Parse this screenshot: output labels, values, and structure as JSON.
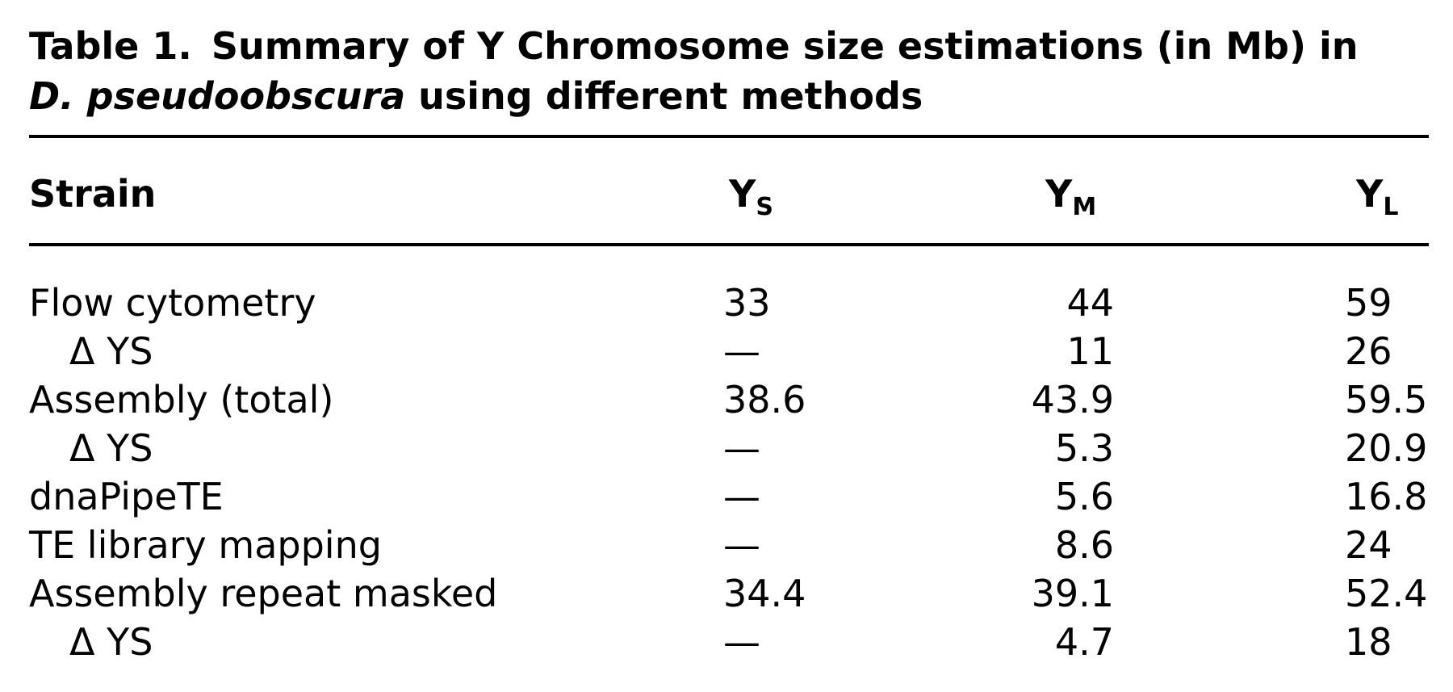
{
  "caption": {
    "label": "Table 1.",
    "title_start": "Summary of Y Chromosome size estimations (in Mb) in",
    "species": "D. pseudoobscura",
    "title_end": " using different methods"
  },
  "table": {
    "headers": {
      "strain": "Strain",
      "ys_main": "Y",
      "ys_sub": "S",
      "ym_main": "Y",
      "ym_sub": "M",
      "yl_main": "Y",
      "yl_sub": "L"
    },
    "rows": [
      {
        "strain": "Flow cytometry",
        "ys": "33",
        "ym": "44",
        "yl": "59",
        "indent": false
      },
      {
        "strain": "Δ YS",
        "ys": "—",
        "ym": "11",
        "yl": "26",
        "indent": true
      },
      {
        "strain": "Assembly (total)",
        "ys": "38.6",
        "ym": "43.9",
        "yl": "59.5",
        "indent": false
      },
      {
        "strain": "Δ YS",
        "ys": "—",
        "ym": "5.3",
        "yl": "20.9",
        "indent": true
      },
      {
        "strain": "dnaPipeTE",
        "ys": "—",
        "ym": "5.6",
        "yl": "16.8",
        "indent": false
      },
      {
        "strain": "TE library mapping",
        "ys": "—",
        "ym": "8.6",
        "yl": "24",
        "indent": false
      },
      {
        "strain": "Assembly repeat masked",
        "ys": "34.4",
        "ym": "39.1",
        "yl": "52.4",
        "indent": false
      },
      {
        "strain": "Δ YS",
        "ys": "—",
        "ym": "4.7",
        "yl": "18",
        "indent": true
      }
    ]
  }
}
